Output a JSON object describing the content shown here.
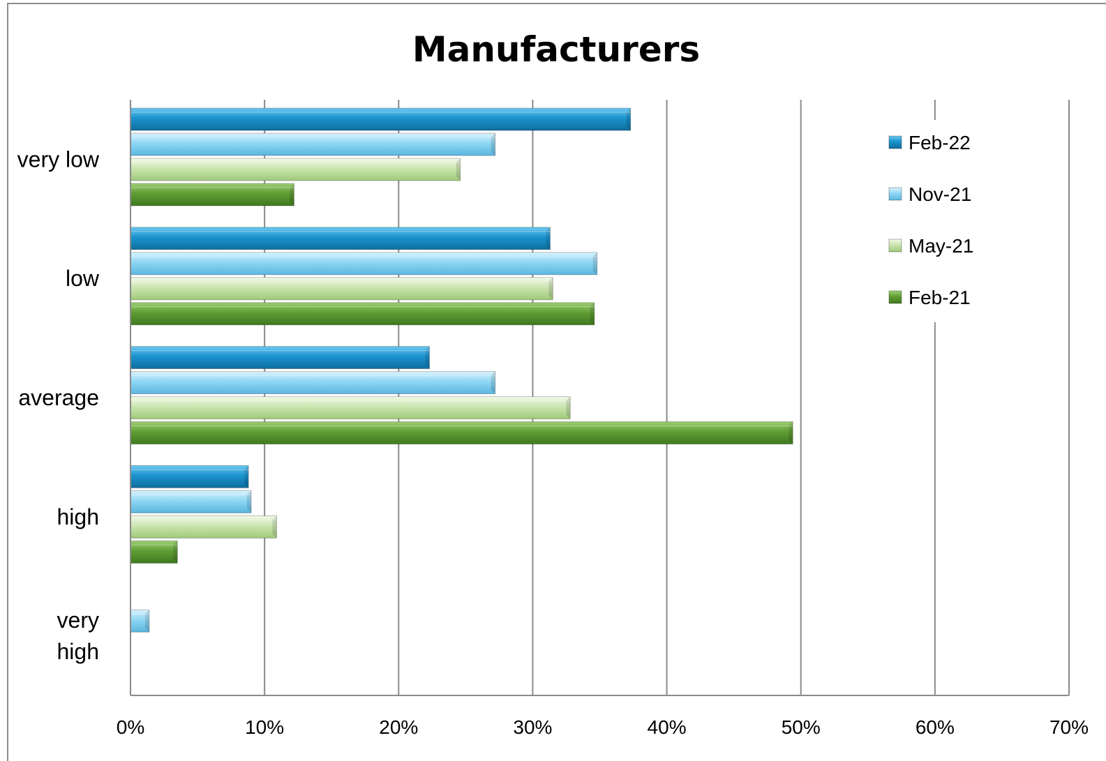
{
  "chart_data": {
    "type": "bar",
    "orientation": "horizontal",
    "title": "Manufacturers",
    "xlabel": "",
    "ylabel": "",
    "xlim": [
      0,
      70
    ],
    "x_ticks": [
      "0%",
      "10%",
      "20%",
      "30%",
      "40%",
      "50%",
      "60%",
      "70%"
    ],
    "categories": [
      [
        "very low"
      ],
      [
        "low"
      ],
      [
        "average"
      ],
      [
        "high"
      ],
      [
        "very",
        "high"
      ]
    ],
    "series": [
      {
        "name": "Feb-22",
        "values": [
          37.3,
          31.3,
          22.3,
          8.8,
          0
        ],
        "color": "#1a93cf"
      },
      {
        "name": "Nov-21",
        "values": [
          27.2,
          34.8,
          27.2,
          9.0,
          1.4
        ],
        "color": "#7fd0f2"
      },
      {
        "name": "May-21",
        "values": [
          24.6,
          31.5,
          32.8,
          10.9,
          0
        ],
        "color": "#c6e2a8"
      },
      {
        "name": "Feb-21",
        "values": [
          12.2,
          34.6,
          49.4,
          3.5,
          0
        ],
        "color": "#5f9d34"
      }
    ],
    "legend_position": "right",
    "grid": true
  }
}
